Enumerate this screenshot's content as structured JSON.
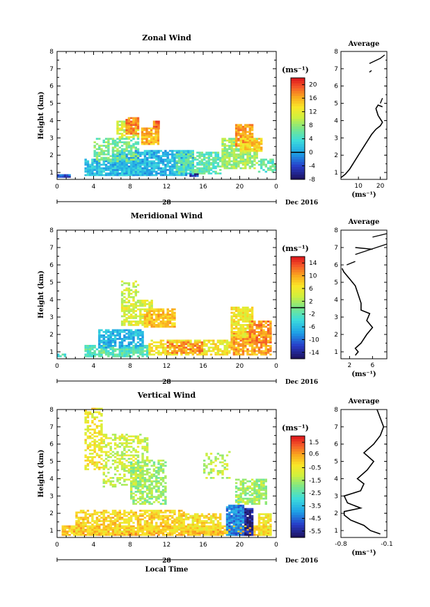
{
  "chart_data": [
    {
      "type": "heatmap",
      "title": "Zonal Wind",
      "ylabel": "Height (km)",
      "xticks": [
        "0",
        "4",
        "8",
        "12",
        "16",
        "20",
        "0"
      ],
      "ylim": [
        0.6,
        8
      ],
      "yticks": [
        "1",
        "2",
        "3",
        "4",
        "5",
        "6",
        "7",
        "8"
      ],
      "date_day": "28",
      "date_label": "Dec 2016",
      "colorbar": {
        "unit": "(ms⁻¹)",
        "min": -8,
        "max": 22,
        "ticks": [
          "20",
          "16",
          "12",
          "8",
          "4",
          "0",
          "-4",
          "-8"
        ],
        "zero_line": 0
      },
      "profile": {
        "title": "Average",
        "xticks": [
          "10",
          "20"
        ],
        "xlim": [
          2,
          23
        ],
        "unit": "(ms⁻¹)",
        "points": [
          [
            2,
            0.7
          ],
          [
            4,
            0.9
          ],
          [
            6,
            1.2
          ],
          [
            8,
            1.6
          ],
          [
            10,
            2.0
          ],
          [
            12,
            2.4
          ],
          [
            14,
            2.8
          ],
          [
            16,
            3.2
          ],
          [
            18,
            3.5
          ],
          [
            20,
            3.7
          ],
          [
            21,
            3.9
          ],
          [
            19,
            4.3
          ],
          [
            18,
            4.7
          ],
          [
            19,
            4.9
          ],
          [
            21,
            4.8
          ]
        ],
        "extra": [
          [
            [
              20,
              5.0
            ],
            [
              21,
              5.3
            ]
          ],
          [
            [
              15,
              7.3
            ],
            [
              20,
              7.6
            ],
            [
              22,
              7.8
            ]
          ],
          [
            [
              15,
              6.8
            ],
            [
              16,
              6.9
            ]
          ]
        ]
      }
    },
    {
      "type": "heatmap",
      "title": "Meridional Wind",
      "ylabel": "Height (km)",
      "xticks": [
        "0",
        "4",
        "8",
        "12",
        "16",
        "20",
        "0"
      ],
      "ylim": [
        0.6,
        8
      ],
      "yticks": [
        "1",
        "2",
        "3",
        "4",
        "5",
        "6",
        "7",
        "8"
      ],
      "date_day": "28",
      "date_label": "Dec 2016",
      "colorbar": {
        "unit": "(ms⁻¹)",
        "min": -16,
        "max": 16,
        "ticks": [
          "14",
          "10",
          "6",
          "2",
          "-2",
          "-6",
          "-10",
          "-14"
        ],
        "zero_line": 0
      },
      "profile": {
        "title": "Average",
        "xticks": [
          "2",
          "6"
        ],
        "xlim": [
          0.5,
          8.5
        ],
        "unit": "(ms⁻¹)",
        "points": [
          [
            3,
            0.8
          ],
          [
            3.5,
            1.0
          ],
          [
            3,
            1.2
          ],
          [
            4,
            1.5
          ],
          [
            5,
            2.0
          ],
          [
            6,
            2.4
          ],
          [
            5,
            2.8
          ],
          [
            5.5,
            3.2
          ],
          [
            4,
            3.4
          ],
          [
            4,
            3.8
          ],
          [
            3.5,
            4.3
          ],
          [
            3,
            4.8
          ],
          [
            2,
            5.2
          ],
          [
            1,
            5.6
          ],
          [
            0.7,
            5.8
          ]
        ],
        "extra": [
          [
            [
              1.5,
              6.0
            ],
            [
              3,
              6.2
            ]
          ],
          [
            [
              3,
              6.6
            ],
            [
              8.5,
              7.2
            ]
          ],
          [
            [
              3,
              7.0
            ],
            [
              6,
              6.9
            ]
          ],
          [
            [
              6,
              7.6
            ],
            [
              8.5,
              7.8
            ]
          ]
        ]
      }
    },
    {
      "type": "heatmap",
      "title": "Vertical Wind",
      "ylabel": "Height (km)",
      "xlabel": "Local Time",
      "xticks": [
        "0",
        "4",
        "8",
        "12",
        "16",
        "20",
        "0"
      ],
      "ylim": [
        0.6,
        8
      ],
      "yticks": [
        "1",
        "2",
        "3",
        "4",
        "5",
        "6",
        "7",
        "8"
      ],
      "date_day": "28",
      "date_label": "Dec 2016",
      "colorbar": {
        "unit": "(ms⁻¹)",
        "min": -6,
        "max": 2,
        "ticks": [
          "1.5",
          "0.6",
          "-0.5",
          "-1.5",
          "-2.5",
          "-3.5",
          "-4.5",
          "-5.5"
        ]
      },
      "profile": {
        "title": "Average",
        "xticks": [
          "-0.8",
          "-0.1"
        ],
        "xlim": [
          -0.8,
          -0.1
        ],
        "unit": "(ms⁻¹)",
        "points": [
          [
            -0.2,
            0.8
          ],
          [
            -0.35,
            1.0
          ],
          [
            -0.45,
            1.3
          ],
          [
            -0.65,
            1.6
          ],
          [
            -0.75,
            1.9
          ],
          [
            -0.75,
            2.1
          ],
          [
            -0.5,
            2.3
          ],
          [
            -0.7,
            2.6
          ],
          [
            -0.75,
            3.0
          ],
          [
            -0.5,
            3.3
          ],
          [
            -0.45,
            3.7
          ],
          [
            -0.55,
            4.0
          ],
          [
            -0.4,
            4.5
          ],
          [
            -0.3,
            5.0
          ],
          [
            -0.45,
            5.5
          ],
          [
            -0.3,
            6.0
          ],
          [
            -0.2,
            6.5
          ],
          [
            -0.15,
            7.0
          ],
          [
            -0.2,
            7.5
          ],
          [
            -0.25,
            8.0
          ]
        ],
        "extra": []
      }
    }
  ]
}
